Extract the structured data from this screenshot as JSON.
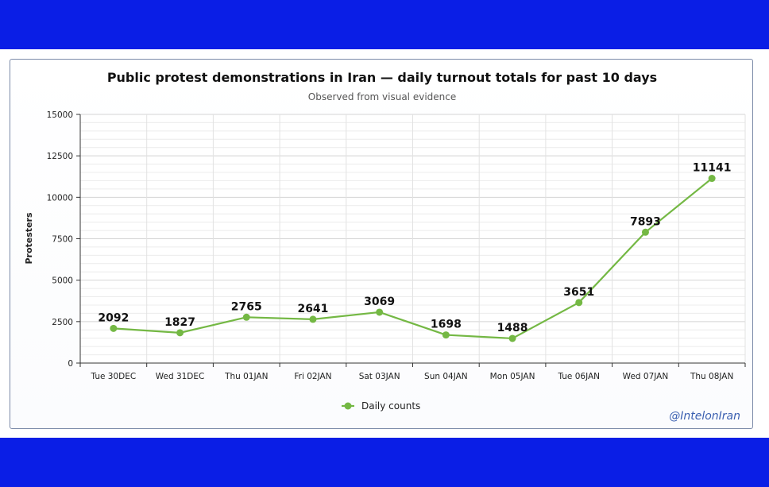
{
  "chart_data": {
    "type": "line",
    "title": "Public protest demonstrations in Iran — daily turnout totals for past 10 days",
    "subtitle": "Observed from visual evidence",
    "ylabel": "Protesters",
    "xlabel": "",
    "categories": [
      "Tue 30DEC",
      "Wed 31DEC",
      "Thu 01JAN",
      "Fri 02JAN",
      "Sat 03JAN",
      "Sun 04JAN",
      "Mon 05JAN",
      "Tue 06JAN",
      "Wed 07JAN",
      "Thu 08JAN"
    ],
    "series": [
      {
        "name": "Daily counts",
        "values": [
          2092,
          1827,
          2765,
          2641,
          3069,
          1698,
          1488,
          3651,
          7893,
          11141
        ]
      }
    ],
    "ylim": [
      0,
      15000
    ],
    "yticks": [
      0,
      2500,
      5000,
      7500,
      10000,
      12500,
      15000
    ],
    "grid": true,
    "legend_position": "bottom-center",
    "series_color": "#74b844"
  },
  "credit": "@IntelonIran",
  "colors": {
    "band": "#0a1ee6",
    "panel_border": "#7b8aa8"
  }
}
